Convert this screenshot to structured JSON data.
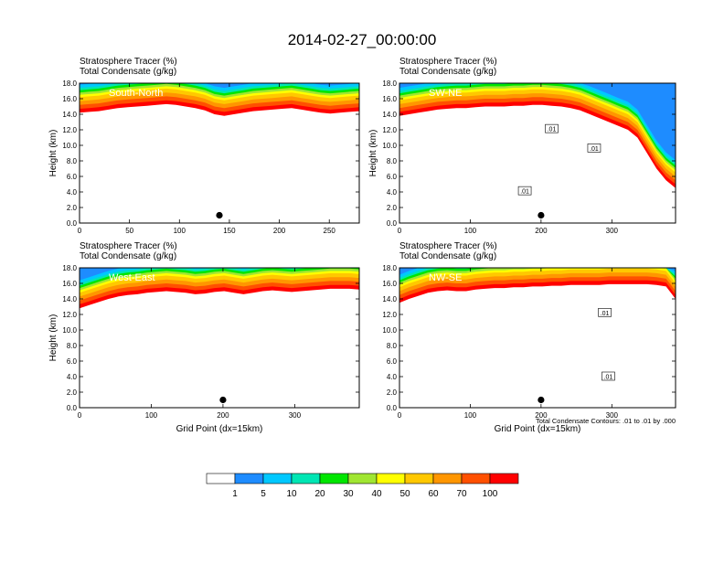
{
  "title": "2014-02-27_00:00:00",
  "colorbar": {
    "labels": [
      "1",
      "5",
      "10",
      "20",
      "30",
      "40",
      "50",
      "60",
      "70",
      "100"
    ],
    "colors": [
      "#ffffff",
      "#1e8cff",
      "#00c8ff",
      "#00e6b4",
      "#00e600",
      "#a0e632",
      "#ffff00",
      "#ffc800",
      "#ff9600",
      "#ff5000",
      "#ff0000"
    ]
  },
  "footnote": "Total Condensate Contours: .01 to .01 by .000",
  "chart_data": [
    {
      "type": "heatmap",
      "label": "South-North",
      "header_line1": "Stratosphere Tracer   (%)",
      "header_line2": "Total Condensate   (g/kg)",
      "xlabel": "",
      "ylabel": "Height (km)",
      "xlim": [
        0,
        280
      ],
      "ylim": [
        0,
        18
      ],
      "xticks": [
        "0",
        "50",
        "100",
        "150",
        "200",
        "250"
      ],
      "xtick_values": [
        0,
        50,
        100,
        150,
        200,
        250
      ],
      "yticks": [
        "0.0",
        "2.0",
        "4.0",
        "6.0",
        "8.0",
        "10.0",
        "12.0",
        "14.0",
        "16.0",
        "18.0"
      ],
      "tracer_bottom_km": [
        14.2,
        14.3,
        14.4,
        14.6,
        14.8,
        14.9,
        15.0,
        15.1,
        15.2,
        15.3,
        15.2,
        15.0,
        14.8,
        14.5,
        14.0,
        13.8,
        14.0,
        14.2,
        14.4,
        14.5,
        14.6,
        14.7,
        14.8,
        14.6,
        14.4,
        14.2,
        14.1,
        14.2,
        14.3,
        14.4
      ],
      "marker": {
        "x": 140,
        "y": 1.0
      },
      "contour_labels": [],
      "legend_note": ""
    },
    {
      "type": "heatmap",
      "label": "SW-NE",
      "header_line1": "Stratosphere Tracer   (%)",
      "header_line2": "Total Condensate   (g/kg)",
      "xlabel": "",
      "ylabel": "Height (km)",
      "xlim": [
        0,
        390
      ],
      "ylim": [
        0,
        18
      ],
      "xticks": [
        "0",
        "100",
        "200",
        "300"
      ],
      "xtick_values": [
        0,
        100,
        200,
        300
      ],
      "yticks": [
        "0.0",
        "2.0",
        "4.0",
        "6.0",
        "8.0",
        "10.0",
        "12.0",
        "14.0",
        "16.0",
        "18.0"
      ],
      "tracer_bottom_km": [
        13.8,
        14.0,
        14.2,
        14.4,
        14.6,
        14.7,
        14.8,
        14.8,
        14.9,
        15.0,
        15.0,
        15.0,
        15.1,
        15.1,
        15.2,
        15.2,
        15.1,
        15.0,
        14.8,
        14.5,
        14.0,
        13.5,
        13.0,
        12.5,
        12.0,
        11.0,
        9.0,
        7.0,
        5.5,
        4.5
      ],
      "marker": {
        "x": 200,
        "y": 1.0
      },
      "contour_labels": [
        {
          "text": ".01",
          "x": 215,
          "y": 12.1
        },
        {
          "text": ".01",
          "x": 275,
          "y": 9.6
        },
        {
          "text": ".01",
          "x": 177,
          "y": 4.1
        }
      ],
      "legend_note": ""
    },
    {
      "type": "heatmap",
      "label": "West-East",
      "header_line1": "Stratosphere Tracer   (%)",
      "header_line2": "Total Condensate   (g/kg)",
      "xlabel": "Grid Point (dx=15km)",
      "ylabel": "Height (km)",
      "xlim": [
        0,
        390
      ],
      "ylim": [
        0,
        18
      ],
      "xticks": [
        "0",
        "100",
        "200",
        "300"
      ],
      "xtick_values": [
        0,
        100,
        200,
        300
      ],
      "yticks": [
        "0.0",
        "2.0",
        "4.0",
        "6.0",
        "8.0",
        "10.0",
        "12.0",
        "14.0",
        "16.0",
        "18.0"
      ],
      "tracer_bottom_km": [
        12.8,
        13.2,
        13.6,
        14.0,
        14.3,
        14.5,
        14.6,
        14.8,
        14.9,
        15.0,
        14.9,
        14.8,
        14.6,
        14.7,
        14.9,
        15.0,
        14.8,
        14.6,
        14.8,
        15.0,
        15.1,
        15.0,
        14.9,
        15.0,
        15.1,
        15.2,
        15.3,
        15.3,
        15.3,
        15.2
      ],
      "marker": {
        "x": 200,
        "y": 1.0
      },
      "contour_labels": [],
      "legend_note": ""
    },
    {
      "type": "heatmap",
      "label": "NW-SE",
      "header_line1": "Stratosphere Tracer   (%)",
      "header_line2": "Total Condensate   (g/kg)",
      "xlabel": "Grid Point (dx=15km)",
      "ylabel": "",
      "xlim": [
        0,
        390
      ],
      "ylim": [
        0,
        18
      ],
      "xticks": [
        "0",
        "100",
        "200",
        "300"
      ],
      "xtick_values": [
        0,
        100,
        200,
        300
      ],
      "yticks": [
        "0.0",
        "2.0",
        "4.0",
        "6.0",
        "8.0",
        "10.0",
        "12.0",
        "14.0",
        "16.0",
        "18.0"
      ],
      "tracer_bottom_km": [
        13.5,
        14.0,
        14.4,
        14.8,
        15.0,
        15.1,
        15.0,
        15.0,
        15.2,
        15.3,
        15.4,
        15.4,
        15.5,
        15.5,
        15.6,
        15.6,
        15.7,
        15.7,
        15.8,
        15.8,
        15.8,
        15.8,
        15.9,
        15.9,
        15.9,
        15.9,
        15.9,
        15.8,
        15.6,
        14.0
      ],
      "marker": {
        "x": 200,
        "y": 1.0
      },
      "contour_labels": [
        {
          "text": ".01",
          "x": 290,
          "y": 12.2
        },
        {
          "text": ".01",
          "x": 295,
          "y": 4.0
        }
      ],
      "legend_note": "Total Condensate Contours: .01 to .01 by .000"
    }
  ]
}
